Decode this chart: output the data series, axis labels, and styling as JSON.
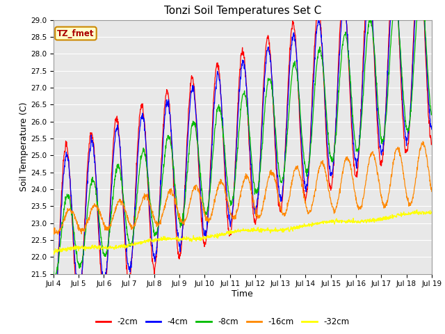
{
  "title": "Tonzi Soil Temperatures Set C",
  "xlabel": "Time",
  "ylabel": "Soil Temperature (C)",
  "ylim": [
    21.5,
    29.0
  ],
  "xtick_labels": [
    "Jul 4",
    "Jul 5",
    "Jul 6",
    "Jul 7",
    "Jul 8",
    "Jul 9",
    "Jul 10",
    "Jul 11",
    "Jul 12",
    "Jul 13",
    "Jul 14",
    "Jul 15",
    "Jul 16",
    "Jul 17",
    "Jul 18",
    "Jul 19"
  ],
  "series": [
    {
      "label": "-2cm",
      "color": "#ff0000"
    },
    {
      "label": "-4cm",
      "color": "#0000ff"
    },
    {
      "label": "-8cm",
      "color": "#00bb00"
    },
    {
      "label": "-16cm",
      "color": "#ff8800"
    },
    {
      "label": "-32cm",
      "color": "#ffff00"
    }
  ],
  "annotation_text": "TZ_fmet",
  "annotation_bg": "#ffffcc",
  "annotation_border": "#cc8800",
  "plot_bg": "#e8e8e8"
}
